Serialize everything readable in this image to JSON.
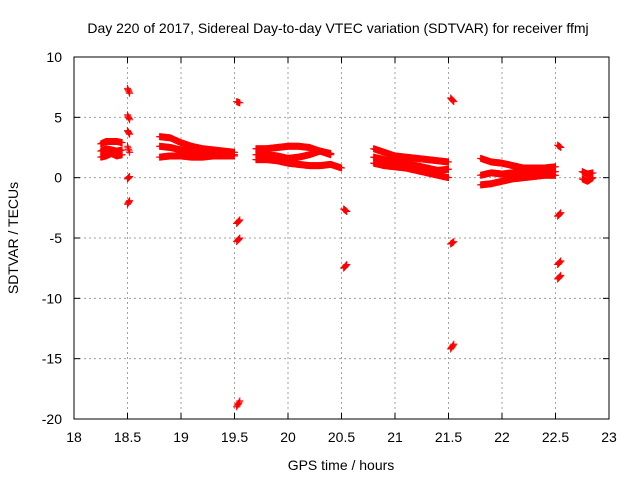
{
  "chart_data": {
    "type": "scatter",
    "title": "Day 220 of 2017, Sidereal Day-to-day VTEC variation (SDTVAR) for receiver ffmj",
    "xlabel": "GPS time / hours",
    "ylabel": "SDTVAR / TECUs",
    "xlim": [
      18,
      23
    ],
    "ylim": [
      -20,
      10
    ],
    "xticks": [
      18,
      18.5,
      19,
      19.5,
      20,
      20.5,
      21,
      21.5,
      22,
      22.5,
      23
    ],
    "xtick_labels": [
      "18",
      "18.5",
      "19",
      "19.5",
      "20",
      "20.5",
      "21",
      "21.5",
      "22",
      "22.5",
      "23"
    ],
    "yticks": [
      -20,
      -15,
      -10,
      -5,
      0,
      5,
      10
    ],
    "ytick_labels": [
      "-20",
      "-15",
      "-10",
      "-5",
      "0",
      "5",
      "10"
    ],
    "grid": true,
    "marker_color": "#ff0000",
    "series": [
      {
        "name": "SDTVAR",
        "color": "#ff0000",
        "segments": [
          {
            "x": [
              18.25,
              18.3,
              18.35,
              18.4,
              18.45
            ],
            "y": [
              2.8,
              3.0,
              3.0,
              3.0,
              2.9
            ]
          },
          {
            "x": [
              18.25,
              18.3,
              18.35,
              18.4,
              18.45
            ],
            "y": [
              2.2,
              2.4,
              2.3,
              2.2,
              2.3
            ]
          },
          {
            "x": [
              18.25,
              18.3,
              18.35,
              18.4,
              18.45
            ],
            "y": [
              1.7,
              1.8,
              2.0,
              1.8,
              1.9
            ]
          },
          {
            "x": [
              18.5,
              18.52
            ],
            "y": [
              7.4,
              7.0
            ]
          },
          {
            "x": [
              18.5,
              18.52
            ],
            "y": [
              5.2,
              4.8
            ]
          },
          {
            "x": [
              18.5,
              18.52
            ],
            "y": [
              3.9,
              3.6
            ]
          },
          {
            "x": [
              18.5,
              18.52
            ],
            "y": [
              2.6,
              2.1
            ]
          },
          {
            "x": [
              18.5,
              18.52
            ],
            "y": [
              -0.1,
              0.1
            ]
          },
          {
            "x": [
              18.5,
              18.52
            ],
            "y": [
              -2.2,
              -1.9
            ]
          },
          {
            "x": [
              18.8,
              18.9,
              19.0,
              19.1,
              19.2,
              19.3,
              19.4,
              19.5
            ],
            "y": [
              3.4,
              3.3,
              2.9,
              2.6,
              2.4,
              2.3,
              2.2,
              2.1
            ]
          },
          {
            "x": [
              18.8,
              18.9,
              19.0,
              19.1,
              19.2,
              19.3,
              19.4,
              19.5
            ],
            "y": [
              2.6,
              2.5,
              2.3,
              2.1,
              2.0,
              2.0,
              2.0,
              1.9
            ]
          },
          {
            "x": [
              18.8,
              18.9,
              19.0,
              19.1,
              19.2,
              19.3,
              19.4,
              19.5
            ],
            "y": [
              1.7,
              1.8,
              1.8,
              1.7,
              1.7,
              1.8,
              1.8,
              1.8
            ]
          },
          {
            "x": [
              19.52,
              19.55
            ],
            "y": [
              6.3,
              6.2
            ]
          },
          {
            "x": [
              19.52,
              19.55
            ],
            "y": [
              -3.8,
              -3.5
            ]
          },
          {
            "x": [
              19.52,
              19.55
            ],
            "y": [
              -5.3,
              -5.0
            ]
          },
          {
            "x": [
              19.52,
              19.55
            ],
            "y": [
              -19.0,
              -18.5
            ]
          },
          {
            "x": [
              19.7,
              19.8,
              19.9,
              20.0,
              20.1,
              20.2,
              20.3,
              20.4
            ],
            "y": [
              2.4,
              2.4,
              2.5,
              2.6,
              2.6,
              2.5,
              2.2,
              1.9
            ]
          },
          {
            "x": [
              19.7,
              19.8,
              19.9,
              20.0,
              20.1,
              20.2,
              20.3,
              20.4
            ],
            "y": [
              1.9,
              1.9,
              1.8,
              1.6,
              1.7,
              1.9,
              2.2,
              2.0
            ]
          },
          {
            "x": [
              19.7,
              19.8,
              19.9,
              20.0,
              20.1,
              20.2,
              20.3,
              20.4,
              20.5
            ],
            "y": [
              1.5,
              1.5,
              1.4,
              1.2,
              1.1,
              1.0,
              1.0,
              1.1,
              0.8
            ]
          },
          {
            "x": [
              20.52,
              20.55
            ],
            "y": [
              -2.6,
              -2.8
            ]
          },
          {
            "x": [
              20.52,
              20.55
            ],
            "y": [
              -7.5,
              -7.2
            ]
          },
          {
            "x": [
              20.8,
              20.9,
              21.0,
              21.1,
              21.2,
              21.3,
              21.4,
              21.5
            ],
            "y": [
              2.4,
              2.1,
              1.8,
              1.7,
              1.6,
              1.5,
              1.4,
              1.3
            ]
          },
          {
            "x": [
              20.8,
              20.9,
              21.0,
              21.1,
              21.2,
              21.3,
              21.4,
              21.5
            ],
            "y": [
              1.7,
              1.5,
              1.3,
              1.2,
              1.0,
              0.8,
              0.6,
              0.7
            ]
          },
          {
            "x": [
              20.8,
              20.9,
              21.0,
              21.1,
              21.2,
              21.3,
              21.4,
              21.5
            ],
            "y": [
              1.2,
              1.0,
              0.9,
              0.8,
              0.6,
              0.4,
              0.2,
              0.0
            ]
          },
          {
            "x": [
              21.52,
              21.55
            ],
            "y": [
              6.6,
              6.3
            ]
          },
          {
            "x": [
              21.52,
              21.55
            ],
            "y": [
              -5.5,
              -5.3
            ]
          },
          {
            "x": [
              21.52,
              21.55
            ],
            "y": [
              -14.2,
              -13.8
            ]
          },
          {
            "x": [
              21.8,
              21.9,
              22.0,
              22.1,
              22.2,
              22.3,
              22.4,
              22.5
            ],
            "y": [
              1.6,
              1.3,
              1.2,
              1.0,
              0.8,
              0.8,
              0.8,
              0.9
            ]
          },
          {
            "x": [
              21.8,
              21.9,
              22.0,
              22.1,
              22.2,
              22.3,
              22.4,
              22.5
            ],
            "y": [
              0.2,
              0.4,
              0.3,
              0.4,
              0.5,
              0.4,
              0.4,
              0.5
            ]
          },
          {
            "x": [
              21.8,
              21.9,
              22.0,
              22.1,
              22.2,
              22.3,
              22.4,
              22.5
            ],
            "y": [
              -0.6,
              -0.5,
              -0.3,
              -0.1,
              0.0,
              0.1,
              0.2,
              0.2
            ]
          },
          {
            "x": [
              22.52,
              22.55
            ],
            "y": [
              2.7,
              2.5
            ]
          },
          {
            "x": [
              22.52,
              22.55
            ],
            "y": [
              -3.2,
              -2.9
            ]
          },
          {
            "x": [
              22.52,
              22.55
            ],
            "y": [
              -7.2,
              -6.9
            ]
          },
          {
            "x": [
              22.52,
              22.55
            ],
            "y": [
              -8.4,
              -8.1
            ]
          },
          {
            "x": [
              22.75,
              22.8,
              22.85
            ],
            "y": [
              0.5,
              0.3,
              0.4
            ]
          },
          {
            "x": [
              22.75,
              22.8,
              22.85
            ],
            "y": [
              -0.1,
              -0.3,
              0.0
            ]
          }
        ]
      }
    ]
  }
}
